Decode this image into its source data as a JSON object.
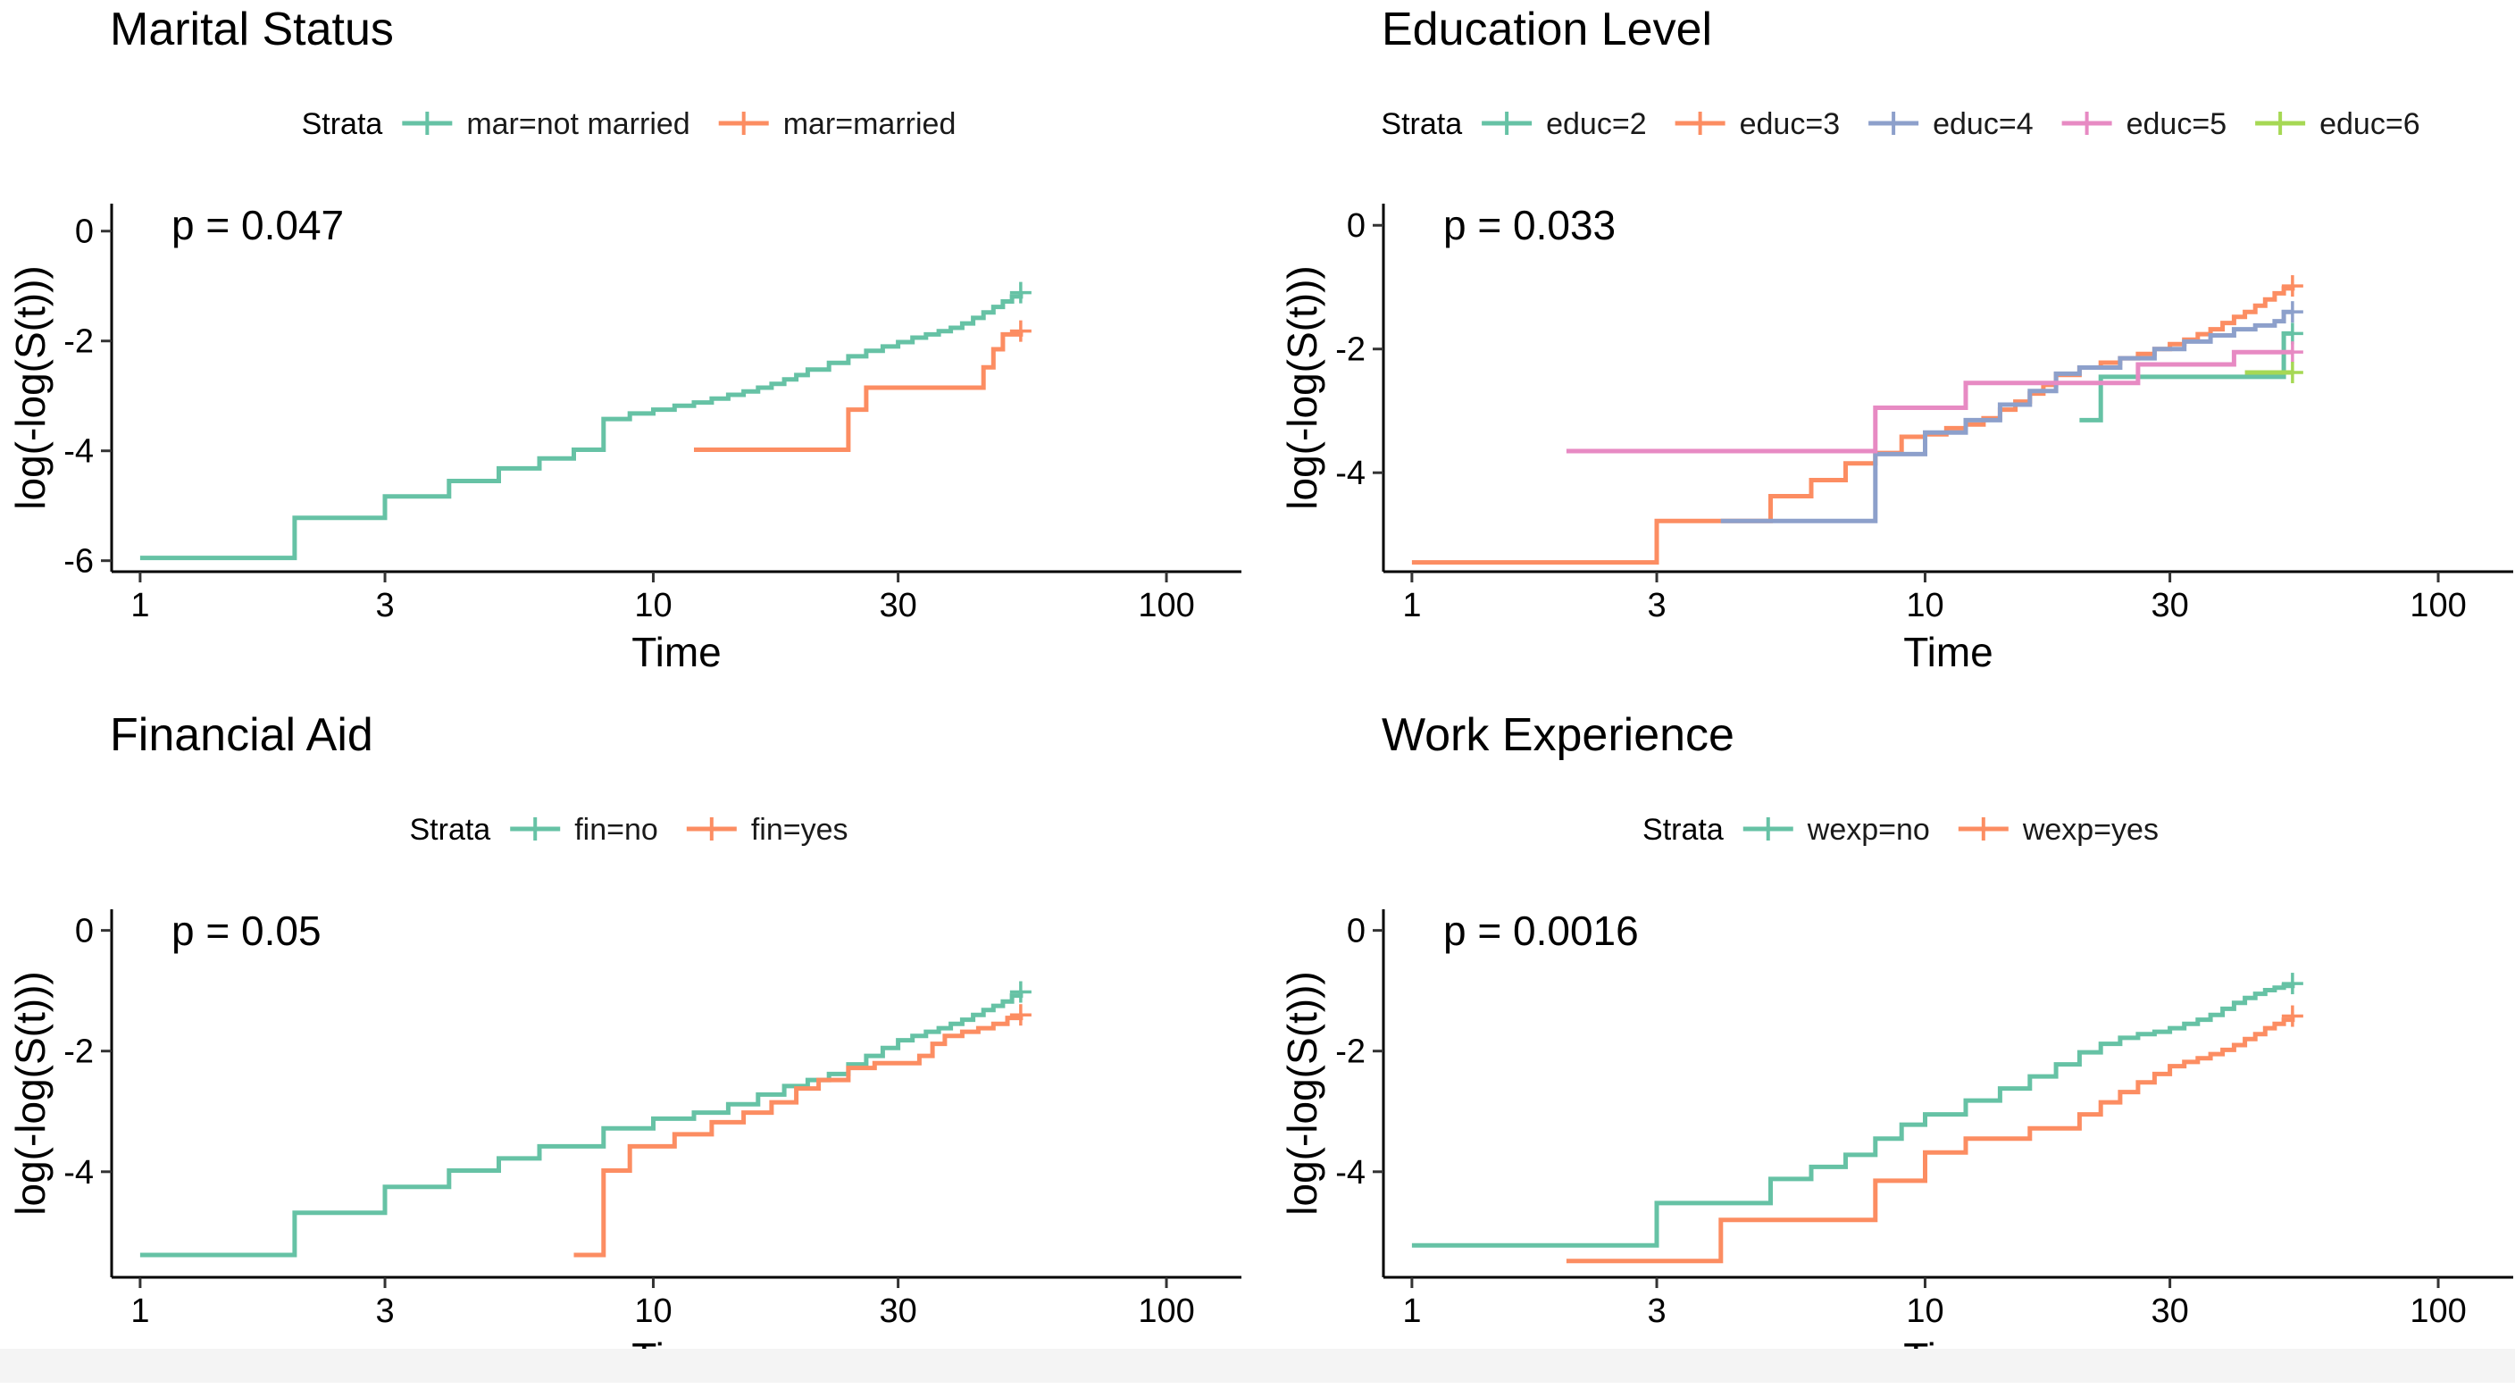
{
  "colors": {
    "teal": "#66c2a5",
    "orange": "#fc8d62",
    "blue": "#8da0cb",
    "pink": "#e78ac3",
    "green": "#a6d854"
  },
  "chart_data": [
    {
      "type": "line",
      "step": true,
      "title": "Marital Status",
      "legend_title": "Strata",
      "legend_position": "top",
      "pvalue": "p = 0.047",
      "xlabel": "Time",
      "ylabel": "log(-log(S(t)))",
      "xscale": "log",
      "xlim": [
        0.88,
        140
      ],
      "ylim": [
        -6.2,
        0.5
      ],
      "xticks": [
        1,
        3,
        10,
        30,
        100
      ],
      "xtick_labels": [
        "1",
        "3",
        "10",
        "30",
        "100"
      ],
      "yticks": [
        0,
        -2,
        -4,
        -6
      ],
      "ytick_labels": [
        "0",
        "-2",
        "-4",
        "-6"
      ],
      "grid": false,
      "series": [
        {
          "name": "mar=not married",
          "color": "#66c2a5",
          "x": [
            1,
            2,
            3,
            4,
            5,
            6,
            7,
            8,
            9,
            10,
            11,
            12,
            13,
            14,
            15,
            16,
            17,
            18,
            19,
            20,
            22,
            24,
            26,
            28,
            30,
            32,
            34,
            36,
            38,
            40,
            42,
            44,
            46,
            48,
            50,
            52
          ],
          "y": [
            -5.95,
            -5.22,
            -4.83,
            -4.55,
            -4.32,
            -4.14,
            -3.98,
            -3.42,
            -3.32,
            -3.25,
            -3.18,
            -3.12,
            -3.05,
            -2.98,
            -2.92,
            -2.85,
            -2.78,
            -2.7,
            -2.62,
            -2.52,
            -2.4,
            -2.28,
            -2.18,
            -2.1,
            -2.02,
            -1.94,
            -1.88,
            -1.82,
            -1.76,
            -1.68,
            -1.58,
            -1.48,
            -1.38,
            -1.28,
            -1.19,
            -1.12
          ],
          "censor_x": [
            52
          ]
        },
        {
          "name": "mar=married",
          "color": "#fc8d62",
          "x": [
            12,
            24,
            26,
            36,
            44,
            46,
            48,
            52
          ],
          "y": [
            -3.98,
            -3.25,
            -2.85,
            -2.85,
            -2.48,
            -2.15,
            -1.88,
            -1.82
          ],
          "censor_x": [
            52
          ]
        }
      ]
    },
    {
      "type": "line",
      "step": true,
      "title": "Education Level",
      "legend_title": "Strata",
      "legend_position": "top",
      "pvalue": "p = 0.033",
      "xlabel": "Time",
      "ylabel": "log(-log(S(t)))",
      "xscale": "log",
      "xlim": [
        0.88,
        140
      ],
      "ylim": [
        -5.6,
        0.35
      ],
      "xticks": [
        1,
        3,
        10,
        30,
        100
      ],
      "xtick_labels": [
        "1",
        "3",
        "10",
        "30",
        "100"
      ],
      "yticks": [
        0,
        -2,
        -4
      ],
      "ytick_labels": [
        "0",
        "-2",
        "-4"
      ],
      "grid": false,
      "series": [
        {
          "name": "educ=2",
          "color": "#66c2a5",
          "x": [
            20,
            22,
            40,
            50,
            52
          ],
          "y": [
            -3.15,
            -2.45,
            -2.45,
            -1.75,
            -1.75
          ],
          "censor_x": [
            52
          ]
        },
        {
          "name": "educ=3",
          "color": "#fc8d62",
          "x": [
            1,
            3,
            5,
            6,
            7,
            8,
            9,
            10,
            11,
            12,
            13,
            14,
            15,
            16,
            17,
            18,
            20,
            22,
            24,
            26,
            28,
            30,
            32,
            34,
            36,
            38,
            40,
            42,
            44,
            46,
            48,
            50,
            52
          ],
          "y": [
            -5.45,
            -4.78,
            -4.38,
            -4.12,
            -3.85,
            -3.68,
            -3.42,
            -3.38,
            -3.28,
            -3.22,
            -3.12,
            -2.98,
            -2.85,
            -2.72,
            -2.58,
            -2.42,
            -2.3,
            -2.22,
            -2.15,
            -2.08,
            -2.0,
            -1.92,
            -1.85,
            -1.76,
            -1.68,
            -1.58,
            -1.48,
            -1.4,
            -1.3,
            -1.2,
            -1.1,
            -1.02,
            -0.98
          ],
          "censor_x": [
            52
          ]
        },
        {
          "name": "educ=4",
          "color": "#8da0cb",
          "x": [
            4,
            8,
            10,
            12,
            14,
            16,
            18,
            20,
            24,
            28,
            32,
            36,
            40,
            44,
            48,
            50,
            52
          ],
          "y": [
            -4.78,
            -3.7,
            -3.35,
            -3.15,
            -2.9,
            -2.68,
            -2.4,
            -2.3,
            -2.15,
            -2.0,
            -1.88,
            -1.78,
            -1.68,
            -1.62,
            -1.55,
            -1.4,
            -1.4
          ],
          "censor_x": [
            52
          ]
        },
        {
          "name": "educ=5",
          "color": "#e78ac3",
          "x": [
            2,
            8,
            12,
            18,
            20,
            26,
            40,
            48,
            52
          ],
          "y": [
            -3.65,
            -2.95,
            -2.55,
            -2.55,
            -2.55,
            -2.25,
            -2.05,
            -2.05,
            -2.05
          ],
          "censor_x": [
            52
          ]
        },
        {
          "name": "educ=6",
          "color": "#a6d854",
          "x": [
            42,
            52
          ],
          "y": [
            -2.38,
            -2.38
          ],
          "censor_x": [
            52
          ]
        }
      ]
    },
    {
      "type": "line",
      "step": true,
      "title": "Financial Aid",
      "legend_title": "Strata",
      "legend_position": "top",
      "pvalue": "p = 0.05",
      "xlabel": "Time",
      "ylabel": "log(-log(S(t)))",
      "xscale": "log",
      "xlim": [
        0.88,
        140
      ],
      "ylim": [
        -5.75,
        0.35
      ],
      "xticks": [
        1,
        3,
        10,
        30,
        100
      ],
      "xtick_labels": [
        "1",
        "3",
        "10",
        "30",
        "100"
      ],
      "yticks": [
        0,
        -2,
        -4
      ],
      "ytick_labels": [
        "0",
        "-2",
        "-4"
      ],
      "grid": false,
      "series": [
        {
          "name": "fin=no",
          "color": "#66c2a5",
          "x": [
            1,
            2,
            3,
            4,
            5,
            6,
            8,
            10,
            12,
            14,
            16,
            18,
            20,
            22,
            24,
            26,
            28,
            30,
            32,
            34,
            36,
            38,
            40,
            42,
            44,
            46,
            48,
            50,
            52
          ],
          "y": [
            -5.38,
            -4.68,
            -4.25,
            -3.98,
            -3.78,
            -3.58,
            -3.28,
            -3.12,
            -3.02,
            -2.88,
            -2.72,
            -2.58,
            -2.48,
            -2.38,
            -2.22,
            -2.08,
            -1.95,
            -1.82,
            -1.75,
            -1.68,
            -1.62,
            -1.55,
            -1.48,
            -1.4,
            -1.32,
            -1.25,
            -1.18,
            -1.08,
            -1.02
          ],
          "censor_x": [
            52
          ]
        },
        {
          "name": "fin=yes",
          "color": "#fc8d62",
          "x": [
            7,
            8,
            9,
            11,
            13,
            15,
            17,
            19,
            21,
            24,
            27,
            30,
            33,
            35,
            37,
            40,
            43,
            46,
            49,
            52
          ],
          "y": [
            -5.38,
            -3.98,
            -3.58,
            -3.38,
            -3.18,
            -3.02,
            -2.85,
            -2.62,
            -2.48,
            -2.28,
            -2.2,
            -2.2,
            -2.08,
            -1.88,
            -1.75,
            -1.68,
            -1.62,
            -1.55,
            -1.45,
            -1.4
          ],
          "censor_x": [
            52
          ]
        }
      ]
    },
    {
      "type": "line",
      "step": true,
      "title": "Work Experience",
      "legend_title": "Strata",
      "legend_position": "top",
      "pvalue": "p = 0.0016",
      "xlabel": "Time",
      "ylabel": "log(-log(S(t)))",
      "xscale": "log",
      "xlim": [
        0.88,
        140
      ],
      "ylim": [
        -5.75,
        0.35
      ],
      "xticks": [
        1,
        3,
        10,
        30,
        100
      ],
      "xtick_labels": [
        "1",
        "3",
        "10",
        "30",
        "100"
      ],
      "yticks": [
        0,
        -2,
        -4
      ],
      "ytick_labels": [
        "0",
        "-2",
        "-4"
      ],
      "grid": false,
      "series": [
        {
          "name": "wexp=no",
          "color": "#66c2a5",
          "x": [
            1,
            3,
            5,
            6,
            7,
            8,
            9,
            10,
            12,
            14,
            16,
            18,
            20,
            22,
            24,
            26,
            28,
            30,
            32,
            34,
            36,
            38,
            40,
            42,
            44,
            46,
            48,
            50,
            52
          ],
          "y": [
            -5.22,
            -4.52,
            -4.12,
            -3.92,
            -3.72,
            -3.45,
            -3.22,
            -3.05,
            -2.82,
            -2.62,
            -2.42,
            -2.22,
            -2.02,
            -1.88,
            -1.78,
            -1.72,
            -1.68,
            -1.62,
            -1.55,
            -1.48,
            -1.4,
            -1.3,
            -1.2,
            -1.12,
            -1.05,
            -0.99,
            -0.95,
            -0.92,
            -0.88
          ],
          "censor_x": [
            52
          ]
        },
        {
          "name": "wexp=yes",
          "color": "#fc8d62",
          "x": [
            2,
            4,
            8,
            10,
            12,
            16,
            20,
            22,
            24,
            26,
            28,
            30,
            32,
            34,
            36,
            38,
            40,
            42,
            44,
            46,
            48,
            50,
            52
          ],
          "y": [
            -5.48,
            -4.8,
            -4.15,
            -3.68,
            -3.45,
            -3.28,
            -3.05,
            -2.85,
            -2.68,
            -2.52,
            -2.38,
            -2.25,
            -2.18,
            -2.12,
            -2.05,
            -1.98,
            -1.9,
            -1.8,
            -1.72,
            -1.62,
            -1.55,
            -1.48,
            -1.42
          ],
          "censor_x": [
            52
          ]
        }
      ]
    }
  ]
}
